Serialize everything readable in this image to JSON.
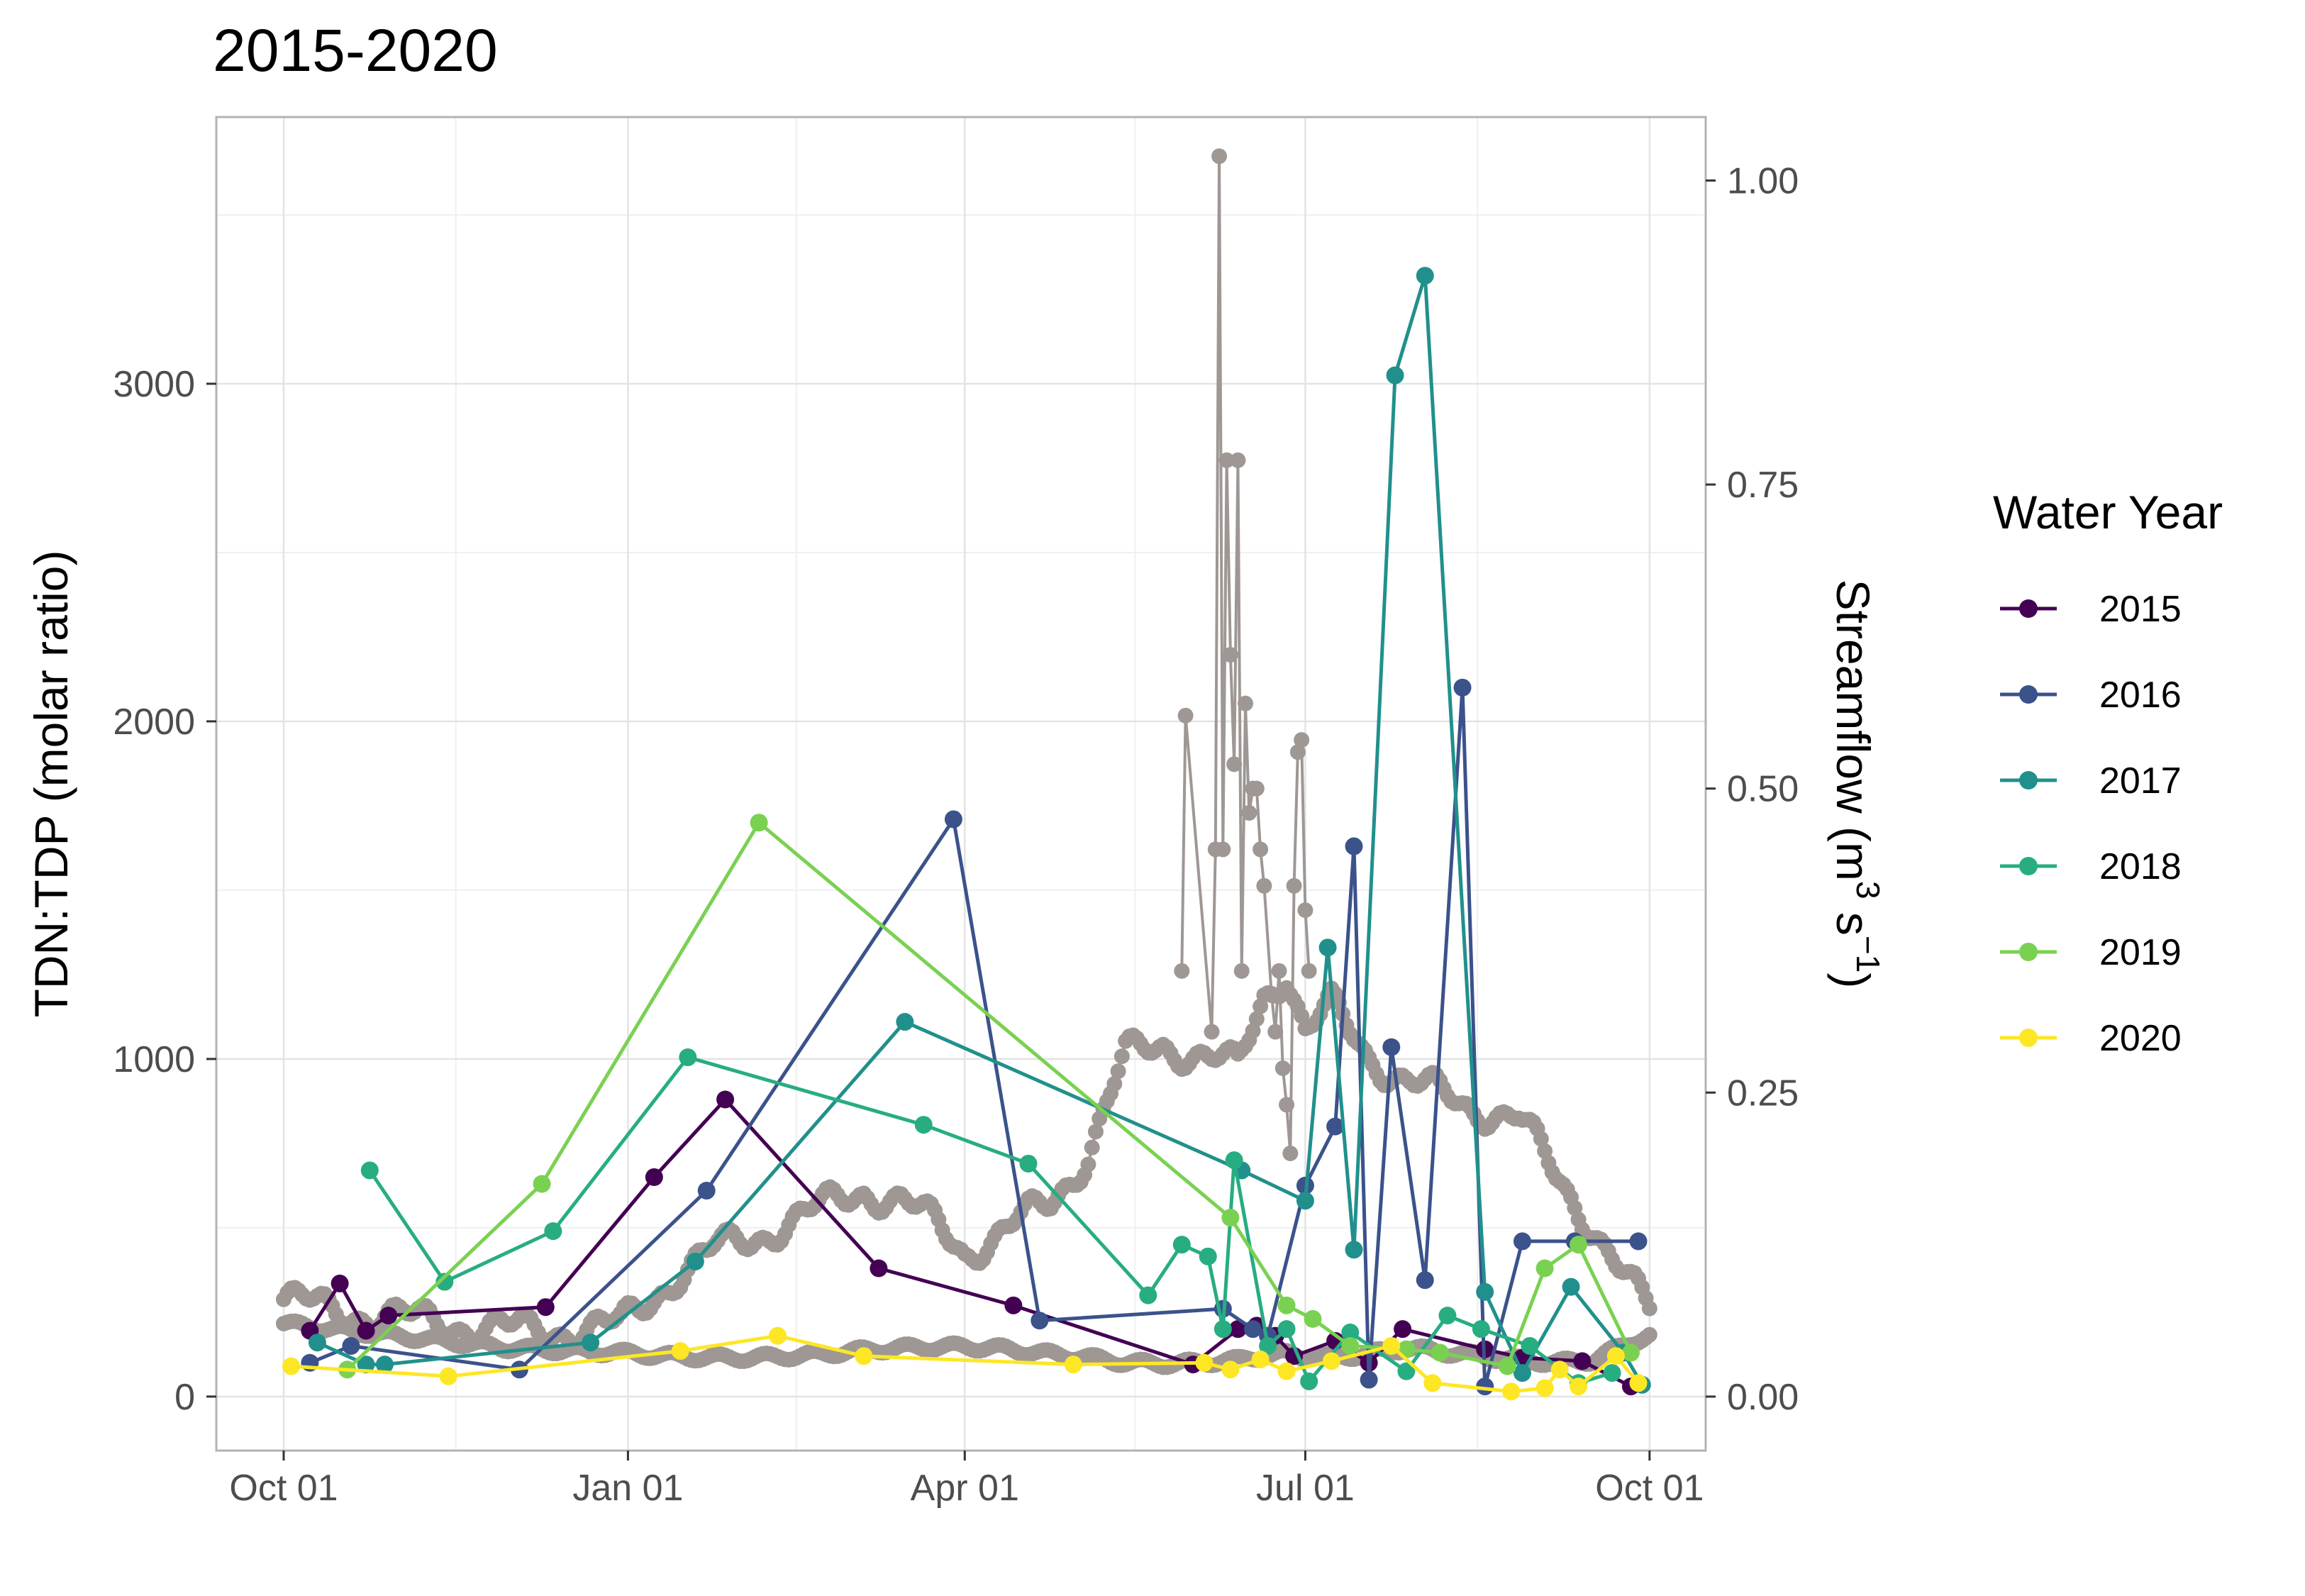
{
  "chart_data": {
    "type": "line",
    "title": "2015-2020",
    "ylabel": "TDN:TDP (molar ratio)",
    "y2label_main": "Streamflow (m",
    "y2label_sup1": "3",
    "y2label_mid": " s",
    "y2label_sup2": "−1",
    "y2label_end": ")",
    "x_ticks": [
      "Oct 01",
      "Jan 01",
      "Apr 01",
      "Jul 01",
      "Oct 01"
    ],
    "x_tick_days": [
      0,
      92,
      182,
      273,
      365
    ],
    "x_domain": [
      -18,
      380
    ],
    "y_ticks": [
      0,
      1000,
      2000,
      3000
    ],
    "y_tick_labels": [
      "0",
      "1000",
      "2000",
      "3000"
    ],
    "ylim": [
      -160,
      3790
    ],
    "y2_ticks": [
      0,
      0.25,
      0.5,
      0.75,
      1.0
    ],
    "y2_tick_labels": [
      "0.00",
      "0.25",
      "0.50",
      "0.75",
      "1.00"
    ],
    "y2lim": [
      -0.0444,
      1.0522
    ],
    "grid": true,
    "legend_title": "Water Year",
    "legend_position": "right",
    "streamflow_color": "#9e9794",
    "streamflow_envelope": {
      "day": [
        0,
        15,
        30,
        45,
        60,
        75,
        90,
        105,
        115,
        125,
        140,
        155,
        165,
        175,
        182,
        190,
        205,
        215,
        225,
        235,
        245,
        255,
        262,
        268,
        273,
        280,
        290,
        300,
        315,
        330,
        340,
        350,
        360,
        365
      ],
      "low": [
        0.06,
        0.055,
        0.05,
        0.045,
        0.04,
        0.038,
        0.036,
        0.033,
        0.032,
        0.032,
        0.034,
        0.038,
        0.04,
        0.041,
        0.041,
        0.04,
        0.035,
        0.032,
        0.028,
        0.027,
        0.028,
        0.03,
        0.034,
        0.035,
        0.033,
        0.032,
        0.035,
        0.04,
        0.035,
        0.03,
        0.028,
        0.03,
        0.045,
        0.05
      ],
      "high": [
        0.08,
        0.07,
        0.065,
        0.06,
        0.055,
        0.055,
        0.058,
        0.1,
        0.12,
        0.13,
        0.15,
        0.17,
        0.16,
        0.14,
        0.12,
        0.13,
        0.16,
        0.2,
        0.28,
        0.29,
        0.28,
        0.27,
        0.33,
        0.35,
        0.3,
        0.32,
        0.28,
        0.26,
        0.24,
        0.23,
        0.18,
        0.14,
        0.09,
        0.07
      ]
    },
    "streamflow_peaks": {
      "day": [
        240,
        241,
        248,
        249,
        250,
        251,
        252,
        253,
        254,
        255,
        256,
        257,
        258,
        259,
        260,
        261,
        262,
        264,
        265,
        266,
        267,
        268,
        269,
        270,
        271,
        272,
        273,
        274
      ],
      "value": [
        0.35,
        0.56,
        0.3,
        0.45,
        1.02,
        0.45,
        0.77,
        0.61,
        0.52,
        0.77,
        0.35,
        0.57,
        0.48,
        0.5,
        0.5,
        0.45,
        0.42,
        0.33,
        0.3,
        0.35,
        0.27,
        0.24,
        0.2,
        0.42,
        0.53,
        0.54,
        0.4,
        0.35
      ]
    },
    "series": [
      {
        "name": "2015",
        "color": "#440154",
        "x": [
          7,
          15,
          22,
          28,
          70,
          99,
          118,
          159,
          195,
          243,
          255,
          260,
          265,
          270,
          281,
          290,
          299,
          321,
          331,
          347,
          360
        ],
        "values": [
          195,
          335,
          195,
          240,
          265,
          650,
          880,
          380,
          270,
          95,
          200,
          210,
          180,
          120,
          165,
          100,
          200,
          140,
          115,
          105,
          30
        ]
      },
      {
        "name": "2016",
        "color": "#3b528b",
        "x": [
          7,
          18,
          63,
          113,
          179,
          202,
          251,
          259,
          263,
          273,
          281,
          286,
          290,
          296,
          305,
          315,
          321,
          331,
          345,
          362
        ],
        "values": [
          100,
          150,
          80,
          610,
          1710,
          225,
          260,
          200,
          180,
          625,
          800,
          1630,
          50,
          1035,
          345,
          2100,
          30,
          460,
          460,
          460
        ]
      },
      {
        "name": "2017",
        "color": "#21908c",
        "x": [
          9,
          22,
          27,
          82,
          110,
          166,
          256,
          273,
          279,
          286,
          297,
          305,
          321,
          331,
          344,
          358,
          363
        ],
        "values": [
          160,
          95,
          95,
          160,
          400,
          1110,
          670,
          580,
          1330,
          435,
          3025,
          3320,
          310,
          70,
          325,
          130,
          35
        ]
      },
      {
        "name": "2018",
        "color": "#27ad81",
        "x": [
          23,
          43,
          72,
          108,
          171,
          199,
          231,
          240,
          247,
          251,
          254,
          263,
          268,
          274,
          285,
          300,
          311,
          320,
          333,
          346,
          355
        ],
        "values": [
          670,
          340,
          490,
          1005,
          805,
          690,
          300,
          450,
          415,
          200,
          700,
          150,
          200,
          45,
          190,
          75,
          240,
          200,
          150,
          40,
          70
        ]
      },
      {
        "name": "2019",
        "color": "#7ad151",
        "x": [
          17,
          69,
          127,
          253,
          268,
          275,
          285,
          300,
          309,
          327,
          337,
          346,
          360
        ],
        "values": [
          80,
          630,
          1700,
          530,
          270,
          230,
          150,
          140,
          130,
          90,
          380,
          450,
          130
        ]
      },
      {
        "name": "2020",
        "color": "#fde725",
        "x": [
          2,
          44,
          106,
          132,
          155,
          211,
          246,
          253,
          261,
          268,
          280,
          296,
          307,
          328,
          337,
          341,
          346,
          356,
          362
        ],
        "values": [
          90,
          60,
          135,
          180,
          120,
          95,
          100,
          80,
          110,
          75,
          105,
          150,
          40,
          15,
          25,
          80,
          30,
          120,
          40
        ]
      }
    ]
  }
}
